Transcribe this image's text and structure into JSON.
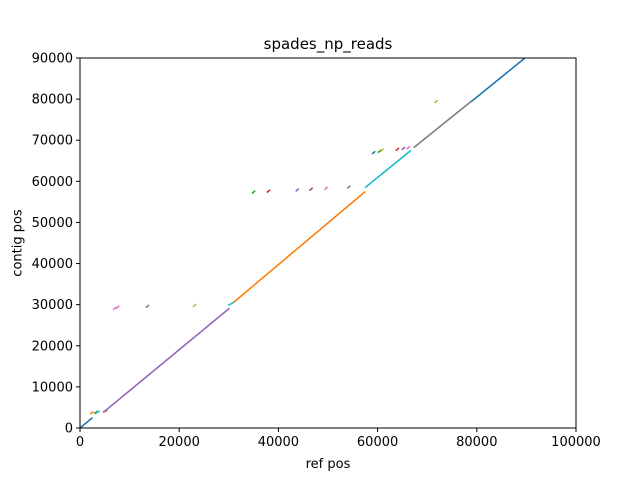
{
  "chart_data": {
    "type": "line",
    "title": "spades_np_reads",
    "xlabel": "ref pos",
    "ylabel": "contig pos",
    "xlim": [
      0,
      100000
    ],
    "ylim": [
      0,
      90000
    ],
    "xticks": [
      0,
      20000,
      40000,
      60000,
      80000,
      100000
    ],
    "yticks": [
      0,
      10000,
      20000,
      30000,
      40000,
      50000,
      60000,
      70000,
      80000,
      90000
    ],
    "grid": false,
    "series": [
      {
        "color": "#1f77b4",
        "x": [
          0,
          2400
        ],
        "y": [
          0,
          2400
        ]
      },
      {
        "color": "#ff7f0e",
        "x": [
          2200,
          2600
        ],
        "y": [
          3500,
          3900
        ]
      },
      {
        "color": "#2ca02c",
        "x": [
          3000,
          3400
        ],
        "y": [
          3600,
          4000
        ]
      },
      {
        "color": "#17becf",
        "x": [
          3400,
          3800
        ],
        "y": [
          3700,
          4100
        ]
      },
      {
        "color": "#d62728",
        "x": [
          4800,
          5400
        ],
        "y": [
          3900,
          4300
        ]
      },
      {
        "color": "#9467bd",
        "x": [
          5000,
          30000
        ],
        "y": [
          4100,
          29000
        ]
      },
      {
        "color": "#e377c2",
        "x": [
          6800,
          7200
        ],
        "y": [
          28900,
          29300
        ]
      },
      {
        "color": "#e377c2",
        "x": [
          7400,
          7800
        ],
        "y": [
          29200,
          29600
        ]
      },
      {
        "color": "#7f7f7f",
        "x": [
          13400,
          13800
        ],
        "y": [
          29400,
          29800
        ]
      },
      {
        "color": "#bcbd22",
        "x": [
          22900,
          23300
        ],
        "y": [
          29600,
          30000
        ]
      },
      {
        "color": "#17becf",
        "x": [
          30000,
          31000
        ],
        "y": [
          29900,
          30600
        ]
      },
      {
        "color": "#ff7f0e",
        "x": [
          31000,
          57400
        ],
        "y": [
          30600,
          57400
        ]
      },
      {
        "color": "#2ca02c",
        "x": [
          34800,
          35200
        ],
        "y": [
          57200,
          57600
        ]
      },
      {
        "color": "#d62728",
        "x": [
          37800,
          38200
        ],
        "y": [
          57400,
          57800
        ]
      },
      {
        "color": "#9467bd",
        "x": [
          43600,
          44000
        ],
        "y": [
          57700,
          58100
        ]
      },
      {
        "color": "#8c564b",
        "x": [
          46400,
          46800
        ],
        "y": [
          57900,
          58300
        ]
      },
      {
        "color": "#e377c2",
        "x": [
          49400,
          49800
        ],
        "y": [
          58100,
          58500
        ]
      },
      {
        "color": "#7f7f7f",
        "x": [
          54000,
          54400
        ],
        "y": [
          58400,
          58800
        ]
      },
      {
        "color": "#17becf",
        "x": [
          57600,
          66600
        ],
        "y": [
          58600,
          67400
        ]
      },
      {
        "color": "#1f77b4",
        "x": [
          59000,
          59400
        ],
        "y": [
          66800,
          67200
        ]
      },
      {
        "color": "#2ca02c",
        "x": [
          60200,
          60600
        ],
        "y": [
          67100,
          67500
        ]
      },
      {
        "color": "#bcbd22",
        "x": [
          60700,
          61100
        ],
        "y": [
          67400,
          67800
        ]
      },
      {
        "color": "#d62728",
        "x": [
          63800,
          64200
        ],
        "y": [
          67600,
          68000
        ]
      },
      {
        "color": "#9467bd",
        "x": [
          65000,
          65400
        ],
        "y": [
          67800,
          68200
        ]
      },
      {
        "color": "#e377c2",
        "x": [
          66000,
          66400
        ],
        "y": [
          68000,
          68400
        ]
      },
      {
        "color": "#7f7f7f",
        "x": [
          67400,
          67800
        ],
        "y": [
          68300,
          68700
        ]
      },
      {
        "color": "#7f7f7f",
        "x": [
          67800,
          78800
        ],
        "y": [
          68700,
          79400
        ]
      },
      {
        "color": "#bcbd22",
        "x": [
          71600,
          72000
        ],
        "y": [
          79200,
          79600
        ]
      },
      {
        "color": "#1f77b4",
        "x": [
          79000,
          89700
        ],
        "y": [
          79500,
          90000
        ]
      }
    ]
  }
}
